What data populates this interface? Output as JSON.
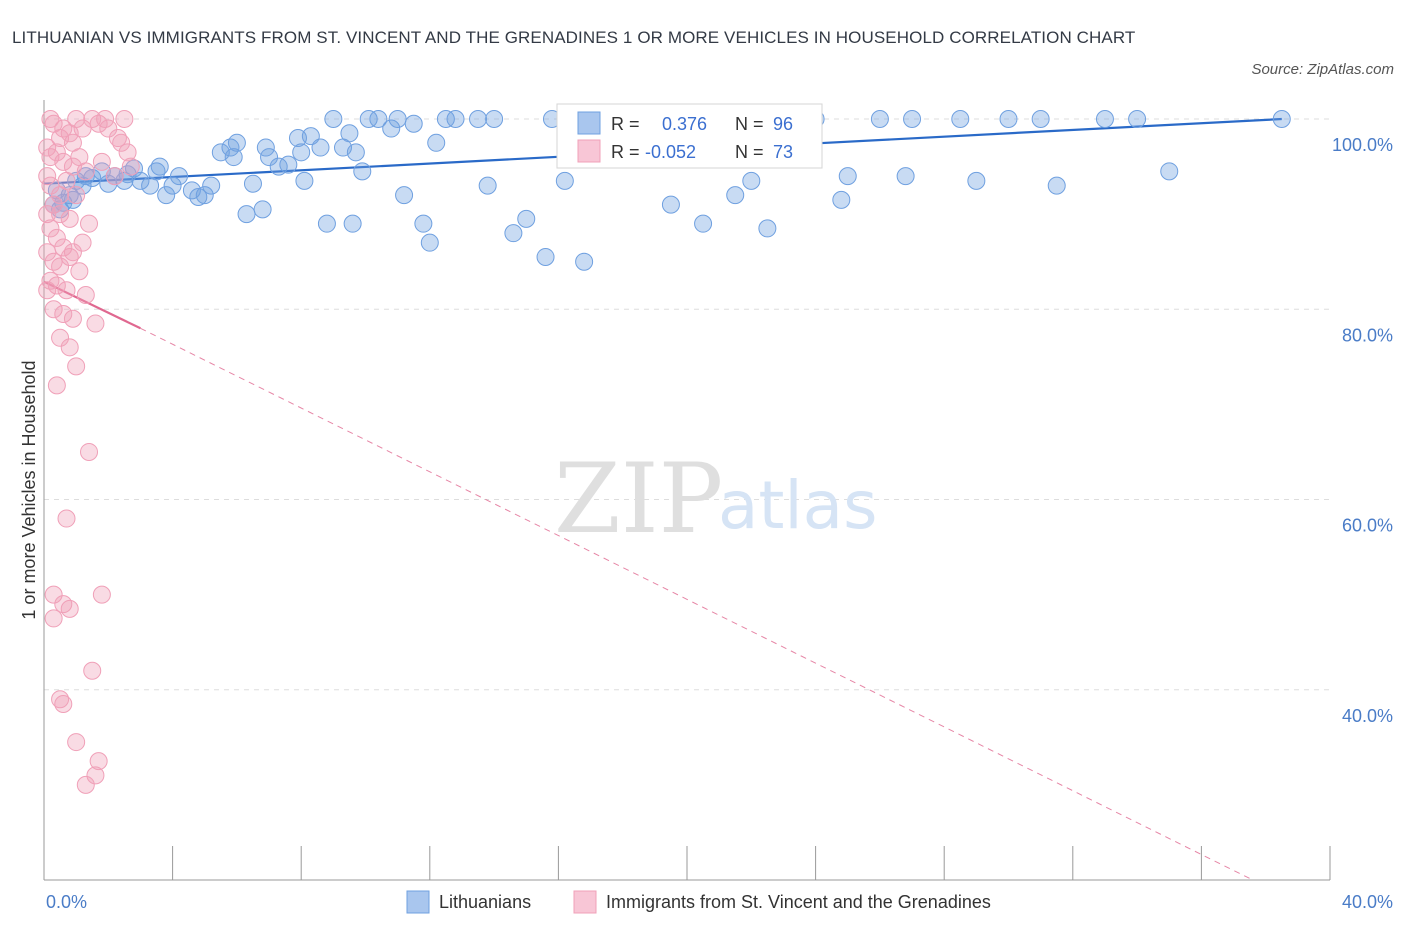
{
  "title": "LITHUANIAN VS IMMIGRANTS FROM ST. VINCENT AND THE GRENADINES 1 OR MORE VEHICLES IN HOUSEHOLD CORRELATION CHART",
  "source": "Source: ZipAtlas.com",
  "watermark": {
    "zip": "ZIP",
    "atlas": "atlas"
  },
  "colors": {
    "blue": "#6fa0e0",
    "blue_line": "#2a6ac8",
    "pink": "#f0a0b8",
    "pink_line": "#e06890",
    "grid": "#dddddd"
  },
  "chart_data": {
    "type": "scatter",
    "xlabel": "",
    "ylabel": "1 or more Vehicles in Household",
    "xlim": [
      0,
      40
    ],
    "ylim": [
      20,
      102
    ],
    "y_ticks": [
      {
        "value": 100,
        "label": "100.0%"
      },
      {
        "value": 80,
        "label": "80.0%"
      },
      {
        "value": 60,
        "label": "60.0%"
      },
      {
        "value": 40,
        "label": "40.0%"
      }
    ],
    "x_ticks": [
      {
        "value": 0,
        "label": "0.0%"
      },
      {
        "value": 40,
        "label": "40.0%"
      }
    ],
    "x_minor_ticks": [
      4,
      8,
      12,
      16,
      20,
      24,
      28,
      32,
      36,
      40
    ],
    "grid": true,
    "legend_position": "bottom-center",
    "stats": [
      {
        "r_label": "R =",
        "r": "0.376",
        "n_label": "N =",
        "n": "96"
      },
      {
        "r_label": "R =",
        "r": "-0.052",
        "n_label": "N =",
        "n": "73"
      }
    ],
    "series": [
      {
        "name": "Lithuanians",
        "color": "#6fa0e0",
        "trend": {
          "x": [
            0,
            38.5
          ],
          "y": [
            93.2,
            100
          ]
        },
        "points": [
          [
            0.3,
            91.0
          ],
          [
            0.5,
            90.5
          ],
          [
            0.6,
            91.2
          ],
          [
            0.8,
            92.0
          ],
          [
            0.9,
            91.5
          ],
          [
            1.0,
            93.5
          ],
          [
            1.3,
            94.0
          ],
          [
            1.5,
            93.8
          ],
          [
            1.8,
            94.5
          ],
          [
            2.0,
            93.2
          ],
          [
            2.2,
            94.0
          ],
          [
            2.5,
            93.5
          ],
          [
            2.8,
            94.8
          ],
          [
            3.0,
            93.5
          ],
          [
            3.3,
            93.0
          ],
          [
            3.5,
            94.5
          ],
          [
            3.8,
            92.0
          ],
          [
            4.0,
            93.0
          ],
          [
            4.2,
            94.0
          ],
          [
            4.6,
            92.5
          ],
          [
            4.8,
            91.8
          ],
          [
            5.0,
            92.0
          ],
          [
            5.2,
            93.0
          ],
          [
            5.5,
            96.5
          ],
          [
            5.8,
            97.0
          ],
          [
            6.0,
            97.5
          ],
          [
            6.3,
            90.0
          ],
          [
            6.5,
            93.2
          ],
          [
            6.9,
            97.0
          ],
          [
            7.0,
            96.0
          ],
          [
            7.3,
            95.0
          ],
          [
            7.6,
            95.2
          ],
          [
            7.9,
            98.0
          ],
          [
            8.0,
            96.5
          ],
          [
            8.3,
            98.2
          ],
          [
            8.6,
            97.0
          ],
          [
            8.8,
            89.0
          ],
          [
            9.0,
            100.0
          ],
          [
            9.3,
            97.0
          ],
          [
            9.5,
            98.5
          ],
          [
            9.7,
            96.5
          ],
          [
            9.9,
            94.5
          ],
          [
            10.1,
            100.0
          ],
          [
            10.4,
            100.0
          ],
          [
            10.8,
            99.0
          ],
          [
            11.0,
            100.0
          ],
          [
            11.2,
            92.0
          ],
          [
            11.5,
            99.5
          ],
          [
            11.8,
            89.0
          ],
          [
            12.2,
            97.5
          ],
          [
            12.5,
            100.0
          ],
          [
            12.8,
            100.0
          ],
          [
            13.5,
            100.0
          ],
          [
            14.0,
            100.0
          ],
          [
            14.6,
            88.0
          ],
          [
            15.0,
            89.5
          ],
          [
            15.6,
            85.5
          ],
          [
            15.8,
            100.0
          ],
          [
            16.2,
            93.5
          ],
          [
            17.0,
            100.0
          ],
          [
            17.2,
            99.5
          ],
          [
            18.0,
            100.0
          ],
          [
            19.0,
            100.0
          ],
          [
            20.5,
            89.0
          ],
          [
            21.0,
            100.0
          ],
          [
            21.5,
            92.0
          ],
          [
            22.5,
            88.5
          ],
          [
            23.0,
            100.0
          ],
          [
            24.0,
            100.0
          ],
          [
            25.0,
            94.0
          ],
          [
            26.0,
            100.0
          ],
          [
            27.0,
            100.0
          ],
          [
            28.5,
            100.0
          ],
          [
            30.0,
            100.0
          ],
          [
            31.0,
            100.0
          ],
          [
            33.0,
            100.0
          ],
          [
            34.0,
            100.0
          ],
          [
            35.0,
            94.5
          ],
          [
            38.5,
            100.0
          ],
          [
            0.4,
            92.5
          ],
          [
            1.2,
            93.0
          ],
          [
            2.6,
            94.2
          ],
          [
            6.8,
            90.5
          ],
          [
            9.6,
            89.0
          ],
          [
            12.0,
            87.0
          ],
          [
            13.8,
            93.0
          ],
          [
            16.8,
            85.0
          ],
          [
            19.5,
            91.0
          ],
          [
            22.0,
            93.5
          ],
          [
            24.8,
            91.5
          ],
          [
            26.8,
            94.0
          ],
          [
            29.0,
            93.5
          ],
          [
            31.5,
            93.0
          ],
          [
            3.6,
            95.0
          ],
          [
            5.9,
            96.0
          ],
          [
            8.1,
            93.5
          ]
        ]
      },
      {
        "name": "Immigrants from St. Vincent and the Grenadines",
        "color": "#f0a0b8",
        "trend": {
          "x": [
            0,
            3.0
          ],
          "y": [
            82.9,
            78.0
          ]
        },
        "trend_dashed": {
          "x": [
            3.0,
            37.6
          ],
          "y": [
            78.0,
            20.0
          ]
        },
        "points": [
          [
            0.2,
            100.0
          ],
          [
            0.3,
            99.5
          ],
          [
            0.5,
            98.0
          ],
          [
            0.6,
            99.0
          ],
          [
            0.8,
            98.5
          ],
          [
            1.0,
            100.0
          ],
          [
            1.2,
            99.0
          ],
          [
            1.5,
            100.0
          ],
          [
            2.5,
            100.0
          ],
          [
            0.4,
            96.5
          ],
          [
            0.6,
            95.5
          ],
          [
            0.9,
            95.0
          ],
          [
            1.1,
            96.0
          ],
          [
            1.3,
            94.5
          ],
          [
            0.2,
            93.0
          ],
          [
            0.5,
            92.0
          ],
          [
            0.7,
            93.5
          ],
          [
            1.0,
            92.0
          ],
          [
            0.3,
            91.0
          ],
          [
            0.5,
            90.0
          ],
          [
            0.8,
            89.5
          ],
          [
            1.4,
            89.0
          ],
          [
            0.2,
            88.5
          ],
          [
            0.4,
            87.5
          ],
          [
            0.6,
            86.5
          ],
          [
            0.9,
            86.0
          ],
          [
            1.2,
            87.0
          ],
          [
            0.3,
            85.0
          ],
          [
            0.5,
            84.5
          ],
          [
            0.8,
            85.5
          ],
          [
            1.1,
            84.0
          ],
          [
            0.2,
            83.0
          ],
          [
            0.4,
            82.5
          ],
          [
            0.7,
            82.0
          ],
          [
            1.3,
            81.5
          ],
          [
            0.3,
            80.0
          ],
          [
            0.6,
            79.5
          ],
          [
            0.9,
            79.0
          ],
          [
            1.6,
            78.5
          ],
          [
            0.5,
            77.0
          ],
          [
            0.8,
            76.0
          ],
          [
            1.0,
            74.0
          ],
          [
            0.4,
            72.0
          ],
          [
            1.4,
            65.0
          ],
          [
            0.7,
            58.0
          ],
          [
            0.3,
            50.0
          ],
          [
            1.8,
            50.0
          ],
          [
            0.6,
            49.0
          ],
          [
            0.8,
            48.5
          ],
          [
            0.3,
            47.5
          ],
          [
            1.5,
            42.0
          ],
          [
            0.5,
            39.0
          ],
          [
            0.6,
            38.5
          ],
          [
            1.0,
            34.5
          ],
          [
            1.7,
            32.5
          ],
          [
            1.6,
            31.0
          ],
          [
            1.3,
            30.0
          ],
          [
            2.0,
            99.0
          ],
          [
            2.3,
            98.0
          ],
          [
            2.6,
            96.5
          ],
          [
            1.8,
            95.5
          ],
          [
            2.2,
            94.0
          ],
          [
            0.1,
            97.0
          ],
          [
            0.1,
            94.0
          ],
          [
            0.1,
            90.0
          ],
          [
            0.1,
            86.0
          ],
          [
            0.1,
            82.0
          ],
          [
            1.9,
            100.0
          ],
          [
            2.4,
            97.5
          ],
          [
            0.2,
            96.0
          ],
          [
            2.7,
            95.0
          ],
          [
            1.7,
            99.5
          ],
          [
            0.9,
            97.5
          ]
        ]
      }
    ]
  },
  "legend": {
    "items": [
      {
        "label": "Lithuanians"
      },
      {
        "label": "Immigrants from St. Vincent and the Grenadines"
      }
    ]
  }
}
